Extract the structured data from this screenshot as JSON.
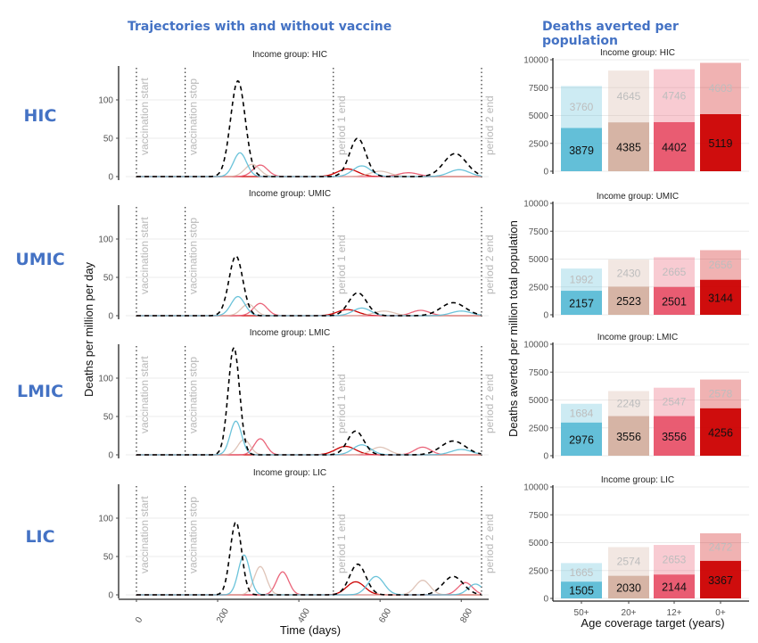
{
  "titles": {
    "left": "Trajectories with and without vaccine",
    "right": "Deaths averted per population"
  },
  "row_labels": [
    "HIC",
    "UMIC",
    "LMIC",
    "LIC"
  ],
  "colors": {
    "title_blue": "#4472c4",
    "no_vaccine": "#000000",
    "age_50": "#5bbcd6",
    "age_20": "#d4b0a0",
    "age_12": "#e8536a",
    "age_0": "#cc0000"
  },
  "chart_data": [
    {
      "type": "line",
      "title": "Trajectories with and without vaccine",
      "xlabel": "Time (days)",
      "ylabel": "Deaths per million per day",
      "xlim": [
        0,
        850
      ],
      "ylim": [
        0,
        145
      ],
      "x_ticks": [
        0,
        200,
        400,
        600,
        800
      ],
      "y_ticks": [
        0,
        50,
        100
      ],
      "grid": true,
      "vertical_markers": [
        {
          "x": 0,
          "label": "vaccination start"
        },
        {
          "x": 120,
          "label": "vaccination stop"
        },
        {
          "x": 485,
          "label": "period 1 end"
        },
        {
          "x": 850,
          "label": "period 2 end"
        }
      ],
      "facets": [
        {
          "label": "Income group: HIC",
          "series": [
            {
              "name": "no vaccine",
              "style": "dashed",
              "peaks": [
                [
                  250,
                  125,
                  18
                ],
                [
                  545,
                  50,
                  20
                ],
                [
                  785,
                  30,
                  28
                ]
              ]
            },
            {
              "name": "50+",
              "peaks": [
                [
                  255,
                  31,
                  16
                ],
                [
                  555,
                  14,
                  22
                ],
                [
                  795,
                  9,
                  25
                ]
              ]
            },
            {
              "name": "20+",
              "peaks": [
                [
                  285,
                  16,
                  18
                ],
                [
                  600,
                  7,
                  25
                ]
              ]
            },
            {
              "name": "12+",
              "peaks": [
                [
                  305,
                  15,
                  18
                ],
                [
                  670,
                  5,
                  25
                ]
              ]
            },
            {
              "name": "0+",
              "peaks": [
                [
                  520,
                  10,
                  25
                ]
              ]
            }
          ]
        },
        {
          "label": "Income group: UMIC",
          "series": [
            {
              "name": "no vaccine",
              "style": "dashed",
              "peaks": [
                [
                  245,
                  78,
                  17
                ],
                [
                  545,
                  30,
                  22
                ],
                [
                  780,
                  17,
                  30
                ]
              ]
            },
            {
              "name": "50+",
              "peaks": [
                [
                  250,
                  25,
                  17
                ],
                [
                  555,
                  10,
                  22
                ],
                [
                  800,
                  6,
                  25
                ]
              ]
            },
            {
              "name": "20+",
              "peaks": [
                [
                  275,
                  15,
                  17
                ],
                [
                  610,
                  6,
                  25
                ]
              ]
            },
            {
              "name": "12+",
              "peaks": [
                [
                  305,
                  16,
                  17
                ],
                [
                  700,
                  7,
                  22
                ]
              ]
            },
            {
              "name": "0+",
              "peaks": [
                [
                  520,
                  8,
                  25
                ]
              ]
            }
          ]
        },
        {
          "label": "Income group: LMIC",
          "series": [
            {
              "name": "no vaccine",
              "style": "dashed",
              "peaks": [
                [
                  240,
                  140,
                  14
                ],
                [
                  540,
                  31,
                  20
                ],
                [
                  780,
                  18,
                  30
                ]
              ]
            },
            {
              "name": "50+",
              "peaks": [
                [
                  245,
                  44,
                  14
                ],
                [
                  555,
                  13,
                  22
                ],
                [
                  800,
                  7,
                  25
                ]
              ]
            },
            {
              "name": "20+",
              "peaks": [
                [
                  265,
                  20,
                  15
                ],
                [
                  600,
                  10,
                  22
                ]
              ]
            },
            {
              "name": "12+",
              "peaks": [
                [
                  305,
                  21,
                  15
                ],
                [
                  705,
                  10,
                  20
                ]
              ]
            },
            {
              "name": "0+",
              "peaks": [
                [
                  515,
                  11,
                  25
                ]
              ]
            }
          ]
        },
        {
          "label": "Income group: LIC",
          "series": [
            {
              "name": "no vaccine",
              "style": "dashed",
              "peaks": [
                [
                  245,
                  95,
                  14
                ],
                [
                  545,
                  40,
                  20
                ],
                [
                  780,
                  24,
                  25
                ]
              ]
            },
            {
              "name": "50+",
              "peaks": [
                [
                  265,
                  52,
                  14
                ],
                [
                  590,
                  24,
                  20
                ],
                [
                  835,
                  14,
                  18
                ]
              ]
            },
            {
              "name": "20+",
              "peaks": [
                [
                  305,
                  37,
                  15
                ],
                [
                  705,
                  19,
                  18
                ]
              ]
            },
            {
              "name": "12+",
              "peaks": [
                [
                  360,
                  30,
                  15
                ],
                [
                  810,
                  16,
                  18
                ]
              ]
            },
            {
              "name": "0+",
              "peaks": [
                [
                  540,
                  17,
                  22
                ]
              ]
            }
          ]
        }
      ]
    },
    {
      "type": "bar",
      "title": "Deaths averted per population",
      "xlabel": "Age coverage target (years)",
      "ylabel": "Deaths averted per million total population",
      "categories": [
        "50+",
        "20+",
        "12+",
        "0+"
      ],
      "ylim": [
        0,
        10000
      ],
      "y_ticks": [
        0,
        2500,
        5000,
        7500,
        10000
      ],
      "stacked": true,
      "facets": [
        {
          "label": "Income group: HIC",
          "period1": [
            3879,
            4385,
            4402,
            5119
          ],
          "period2": [
            3760,
            4645,
            4746,
            4603
          ]
        },
        {
          "label": "Income group: UMIC",
          "period1": [
            2157,
            2523,
            2501,
            3144
          ],
          "period2": [
            1992,
            2430,
            2665,
            2656
          ]
        },
        {
          "label": "Income group: LMIC",
          "period1": [
            2976,
            3556,
            3556,
            4256
          ],
          "period2": [
            1684,
            2249,
            2547,
            2578
          ]
        },
        {
          "label": "Income group: LIC",
          "period1": [
            1505,
            2030,
            2144,
            3367
          ],
          "period2": [
            1665,
            2574,
            2653,
            2472
          ]
        }
      ]
    }
  ]
}
